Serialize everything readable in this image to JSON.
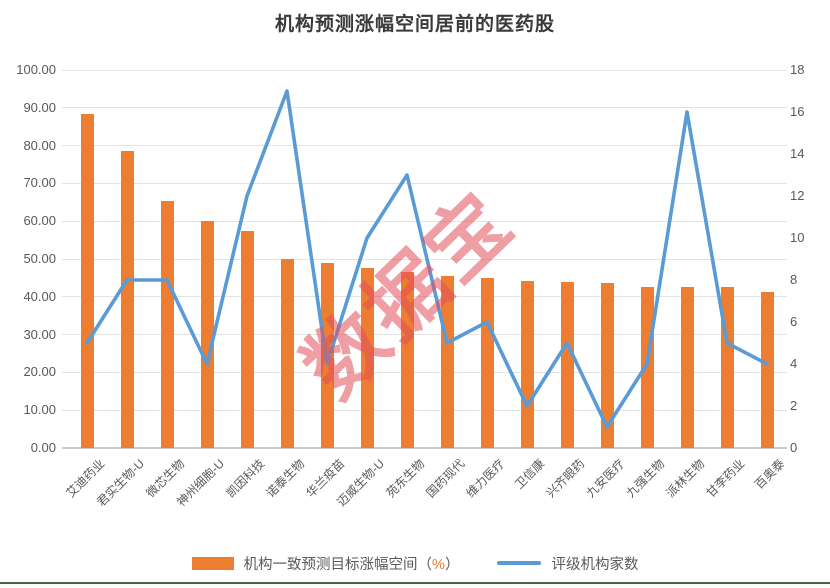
{
  "title": "机构预测涨幅空间居前的医药股",
  "watermark": "数据宝",
  "legend": {
    "bar_label_main": "机构一致预测目标涨幅空间（",
    "bar_label_pct": "%",
    "bar_label_close": "）",
    "line_label": "评级机构家数"
  },
  "colors": {
    "bar": "#ED7D31",
    "line": "#5B9BD5",
    "grid": "#e3e3e3",
    "tick_text": "#595959",
    "watermark": "rgba(225,78,90,0.55)",
    "bottom_border": "#3f6b3f"
  },
  "chart_data": {
    "type": "bar",
    "subtype": "combo-bar-line",
    "title": "机构预测涨幅空间居前的医药股",
    "categories": [
      "艾迪药业",
      "君实生物-U",
      "微芯生物",
      "神州细胞-U",
      "凯因科技",
      "诺泰生物",
      "华兰疫苗",
      "迈威生物-U",
      "苑东生物",
      "国药现代",
      "维力医疗",
      "卫信康",
      "兴齐眼药",
      "九安医疗",
      "九强生物",
      "派林生物",
      "甘李药业",
      "百奥泰"
    ],
    "series": [
      {
        "name": "机构一致预测目标涨幅空间（%）",
        "type": "bar",
        "axis": "left",
        "color": "#ED7D31",
        "values": [
          88.3,
          78.6,
          65.4,
          60.1,
          57.4,
          50.1,
          48.9,
          47.7,
          46.5,
          45.4,
          44.9,
          44.1,
          43.9,
          43.7,
          42.7,
          42.6,
          42.5,
          41.4
        ]
      },
      {
        "name": "评级机构家数",
        "type": "line",
        "axis": "right",
        "color": "#5B9BD5",
        "values": [
          5,
          8,
          8,
          4,
          12,
          17,
          4,
          10,
          13,
          5,
          6,
          2,
          5,
          1,
          4,
          16,
          5,
          4
        ]
      }
    ],
    "left_axis": {
      "min": 0,
      "max": 100,
      "ticks": [
        "100.00",
        "90.00",
        "80.00",
        "70.00",
        "60.00",
        "50.00",
        "40.00",
        "30.00",
        "20.00",
        "10.00",
        "0.00"
      ]
    },
    "right_axis": {
      "min": 0,
      "max": 18,
      "ticks": [
        "18",
        "16",
        "14",
        "12",
        "10",
        "8",
        "6",
        "4",
        "2",
        "0"
      ]
    },
    "grid": true,
    "legend_position": "bottom",
    "xlabel_rotation": -45
  }
}
